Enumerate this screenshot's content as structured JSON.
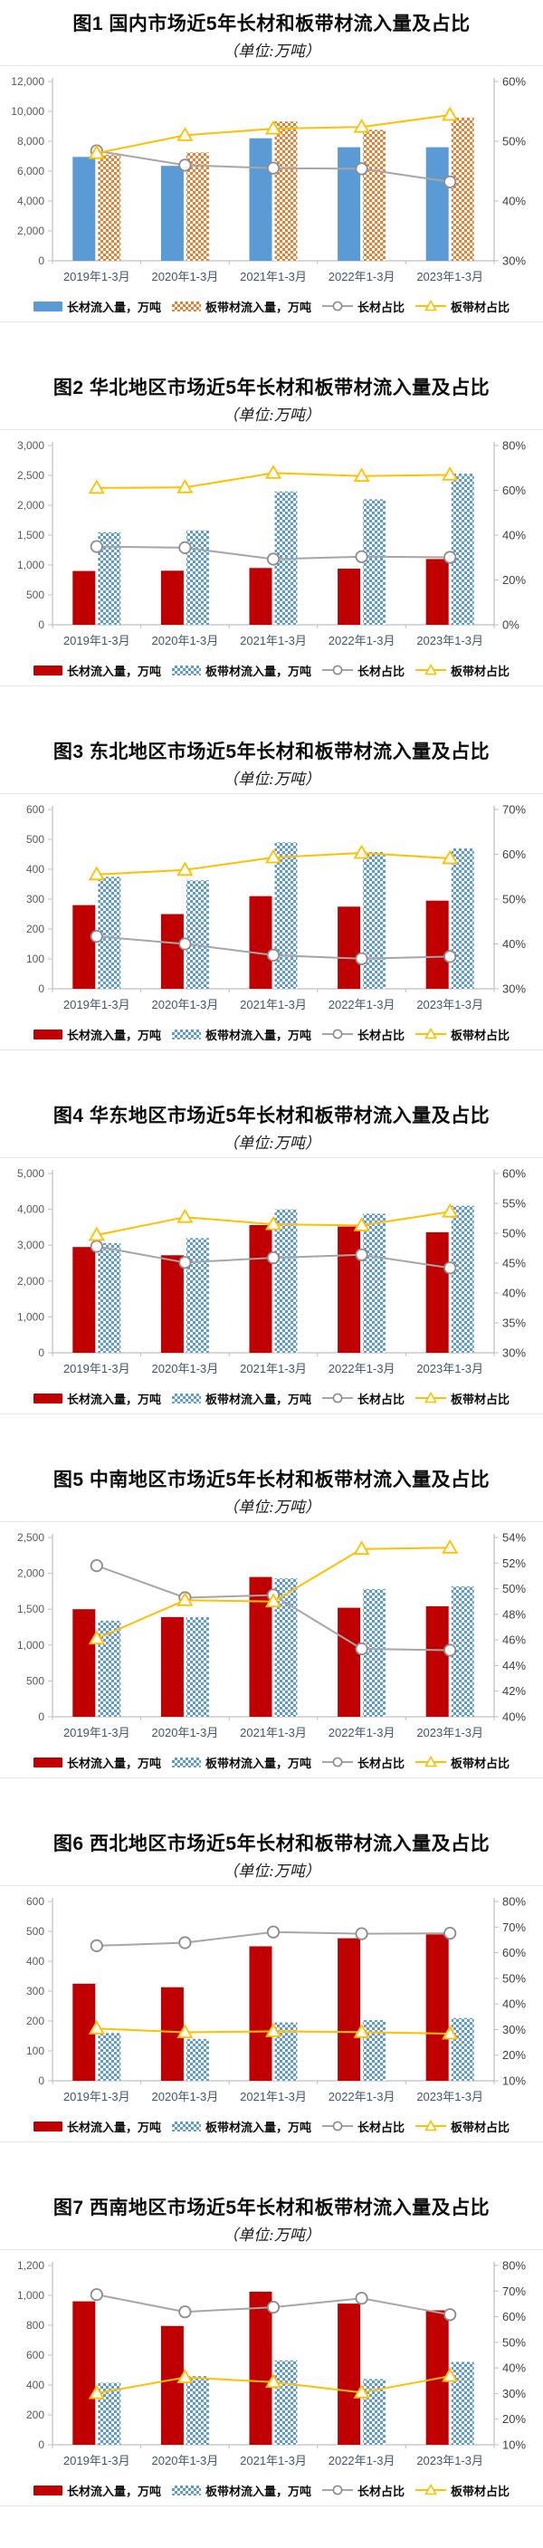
{
  "page": {
    "background": "#ffffff"
  },
  "colors": {
    "blue_bar": "#5B9BD5",
    "orange_bar": "#ED7D31",
    "red_bar": "#C00000",
    "gray_line": "#A6A6A6",
    "yellow_line": "#FFC000",
    "axis_line": "#BFBFBF",
    "left_axis_text": "#595959",
    "right_axis_text": "#3F3F3F",
    "x_label_text": "#44546A",
    "legend_text": "#0D0D0D"
  },
  "legend_labels": {
    "bar1": "长材流入量，万吨",
    "bar2": "板带材流入量，万吨",
    "line1": "长材占比",
    "line2": "板带材占比"
  },
  "figures": [
    {
      "title": "图1 国内市场近5年长材和板带材流入量及占比",
      "subtitle": "（单位:万吨）",
      "chart_data": {
        "type": "bar+line",
        "categories": [
          "2019年1-3月",
          "2020年1-3月",
          "2021年1-3月",
          "2022年1-3月",
          "2023年1-3月"
        ],
        "left_axis": {
          "min": 0,
          "max": 12000,
          "step": 2000
        },
        "right_axis": {
          "min": 30,
          "max": 60,
          "step": 10,
          "suffix": "%"
        },
        "grid": false,
        "legend_position": "bottom",
        "series": [
          {
            "name": "长材流入量，万吨",
            "type": "bar",
            "style": "solid",
            "color": "#5B9BD5",
            "axis": "left",
            "values": [
              6950,
              6350,
              8200,
              7600,
              7600
            ]
          },
          {
            "name": "板带材流入量，万吨",
            "type": "bar",
            "style": "checker",
            "color": "#ED7D31",
            "axis": "left",
            "values": [
              7100,
              7250,
              9330,
              8770,
              9590
            ]
          },
          {
            "name": "长材占比",
            "type": "line",
            "marker": "circle",
            "color": "#A6A6A6",
            "axis": "right",
            "values": [
              48.4,
              46.0,
              45.5,
              45.4,
              43.2
            ]
          },
          {
            "name": "板带材占比",
            "type": "line",
            "marker": "triangle",
            "color": "#FFC000",
            "axis": "right",
            "values": [
              48.0,
              51.0,
              52.1,
              52.4,
              54.4
            ]
          }
        ]
      }
    },
    {
      "title": "图2 华北地区市场近5年长材和板带材流入量及占比",
      "subtitle": "（单位:万吨）",
      "chart_data": {
        "type": "bar+line",
        "categories": [
          "2019年1-3月",
          "2020年1-3月",
          "2021年1-3月",
          "2022年1-3月",
          "2023年1-3月"
        ],
        "left_axis": {
          "min": 0,
          "max": 3000,
          "step": 500
        },
        "right_axis": {
          "min": 0,
          "max": 80,
          "step": 20,
          "suffix": "%"
        },
        "grid": false,
        "legend_position": "bottom",
        "series": [
          {
            "name": "长材流入量，万吨",
            "type": "bar",
            "style": "solid",
            "color": "#C00000",
            "axis": "left",
            "values": [
              900,
              905,
              950,
              940,
              1100
            ]
          },
          {
            "name": "板带材流入量，万吨",
            "type": "bar",
            "style": "checker",
            "color": "#5B9BD5",
            "axis": "left",
            "values": [
              1550,
              1580,
              2230,
              2100,
              2530
            ]
          },
          {
            "name": "长材占比",
            "type": "line",
            "marker": "circle",
            "color": "#A6A6A6",
            "axis": "right",
            "values": [
              34.9,
              34.4,
              29.3,
              30.4,
              30.1
            ]
          },
          {
            "name": "板带材占比",
            "type": "line",
            "marker": "triangle",
            "color": "#FFC000",
            "axis": "right",
            "values": [
              61.1,
              61.3,
              67.7,
              66.4,
              66.9
            ]
          }
        ]
      }
    },
    {
      "title": "图3 东北地区市场近5年长材和板带材流入量及占比",
      "subtitle": "（单位:万吨）",
      "chart_data": {
        "type": "bar+line",
        "categories": [
          "2019年1-3月",
          "2020年1-3月",
          "2021年1-3月",
          "2022年1-3月",
          "2023年1-3月"
        ],
        "left_axis": {
          "min": 0,
          "max": 600,
          "step": 100
        },
        "right_axis": {
          "min": 30,
          "max": 70,
          "step": 10,
          "suffix": "%"
        },
        "grid": false,
        "legend_position": "bottom",
        "series": [
          {
            "name": "长材流入量，万吨",
            "type": "bar",
            "style": "solid",
            "color": "#C00000",
            "axis": "left",
            "values": [
              280,
              250,
              310,
              275,
              295
            ]
          },
          {
            "name": "板带材流入量，万吨",
            "type": "bar",
            "style": "checker",
            "color": "#5B9BD5",
            "axis": "left",
            "values": [
              375,
              363,
              490,
              458,
              470
            ]
          },
          {
            "name": "长材占比",
            "type": "line",
            "marker": "circle",
            "color": "#A6A6A6",
            "axis": "right",
            "values": [
              41.7,
              40.0,
              37.5,
              36.7,
              37.2
            ]
          },
          {
            "name": "板带材占比",
            "type": "line",
            "marker": "triangle",
            "color": "#FFC000",
            "axis": "right",
            "values": [
              55.5,
              56.5,
              59.3,
              60.3,
              59.1
            ]
          }
        ]
      }
    },
    {
      "title": "图4 华东地区市场近5年长材和板带材流入量及占比",
      "subtitle": "（单位:万吨）",
      "chart_data": {
        "type": "bar+line",
        "categories": [
          "2019年1-3月",
          "2020年1-3月",
          "2021年1-3月",
          "2022年1-3月",
          "2023年1-3月"
        ],
        "left_axis": {
          "min": 0,
          "max": 5000,
          "step": 1000
        },
        "right_axis": {
          "min": 30,
          "max": 60,
          "step": 5,
          "suffix": "%"
        },
        "grid": false,
        "legend_position": "bottom",
        "series": [
          {
            "name": "长材流入量，万吨",
            "type": "bar",
            "style": "solid",
            "color": "#C00000",
            "axis": "left",
            "values": [
              2950,
              2720,
              3560,
              3520,
              3360
            ]
          },
          {
            "name": "板带材流入量，万吨",
            "type": "bar",
            "style": "checker",
            "color": "#5B9BD5",
            "axis": "left",
            "values": [
              3060,
              3200,
              4000,
              3880,
              4100
            ]
          },
          {
            "name": "长材占比",
            "type": "line",
            "marker": "circle",
            "color": "#A6A6A6",
            "axis": "right",
            "values": [
              47.8,
              45.1,
              45.9,
              46.4,
              44.2
            ]
          },
          {
            "name": "板带材占比",
            "type": "line",
            "marker": "triangle",
            "color": "#FFC000",
            "axis": "right",
            "values": [
              49.7,
              52.7,
              51.5,
              51.3,
              53.6
            ]
          }
        ]
      }
    },
    {
      "title": "图5 中南地区市场近5年长材和板带材流入量及占比",
      "subtitle": "（单位:万吨）",
      "chart_data": {
        "type": "bar+line",
        "categories": [
          "2019年1-3月",
          "2020年1-3月",
          "2021年1-3月",
          "2022年1-3月",
          "2023年1-3月"
        ],
        "left_axis": {
          "min": 0,
          "max": 2500,
          "step": 500
        },
        "right_axis": {
          "min": 40,
          "max": 54,
          "step": 2,
          "suffix": "%"
        },
        "grid": false,
        "legend_position": "bottom",
        "series": [
          {
            "name": "长材流入量，万吨",
            "type": "bar",
            "style": "solid",
            "color": "#C00000",
            "axis": "left",
            "values": [
              1500,
              1390,
              1950,
              1520,
              1540
            ]
          },
          {
            "name": "板带材流入量，万吨",
            "type": "bar",
            "style": "checker",
            "color": "#5B9BD5",
            "axis": "left",
            "values": [
              1340,
              1390,
              1930,
              1780,
              1820
            ]
          },
          {
            "name": "长材占比",
            "type": "line",
            "marker": "circle",
            "color": "#A6A6A6",
            "axis": "right",
            "values": [
              51.8,
              49.3,
              49.5,
              45.3,
              45.2
            ]
          },
          {
            "name": "板带材占比",
            "type": "line",
            "marker": "triangle",
            "color": "#FFC000",
            "axis": "right",
            "values": [
              46.1,
              49.1,
              49.0,
              53.1,
              53.2
            ]
          }
        ]
      }
    },
    {
      "title": "图6 西北地区市场近5年长材和板带材流入量及占比",
      "subtitle": "（单位:万吨）",
      "chart_data": {
        "type": "bar+line",
        "categories": [
          "2019年1-3月",
          "2020年1-3月",
          "2021年1-3月",
          "2022年1-3月",
          "2023年1-3月"
        ],
        "left_axis": {
          "min": 0,
          "max": 600,
          "step": 100
        },
        "right_axis": {
          "min": 10,
          "max": 80,
          "step": 10,
          "suffix": "%"
        },
        "grid": false,
        "legend_position": "bottom",
        "series": [
          {
            "name": "长材流入量，万吨",
            "type": "bar",
            "style": "solid",
            "color": "#C00000",
            "axis": "left",
            "values": [
              325,
              313,
              450,
              477,
              490
            ]
          },
          {
            "name": "板带材流入量，万吨",
            "type": "bar",
            "style": "checker",
            "color": "#5B9BD5",
            "axis": "left",
            "values": [
              160,
              140,
              195,
              203,
              210
            ]
          },
          {
            "name": "长材占比",
            "type": "line",
            "marker": "circle",
            "color": "#A6A6A6",
            "axis": "right",
            "values": [
              62.7,
              63.9,
              68.1,
              67.4,
              67.6
            ]
          },
          {
            "name": "板带材占比",
            "type": "line",
            "marker": "triangle",
            "color": "#FFC000",
            "axis": "right",
            "values": [
              30.4,
              28.9,
              29.3,
              29.0,
              28.4
            ]
          }
        ]
      }
    },
    {
      "title": "图7 西南地区市场近5年长材和板带材流入量及占比",
      "subtitle": "（单位:万吨）",
      "chart_data": {
        "type": "bar+line",
        "categories": [
          "2019年1-3月",
          "2020年1-3月",
          "2021年1-3月",
          "2022年1-3月",
          "2023年1-3月"
        ],
        "left_axis": {
          "min": 0,
          "max": 1200,
          "step": 200
        },
        "right_axis": {
          "min": 10,
          "max": 80,
          "step": 10,
          "suffix": "%"
        },
        "grid": false,
        "legend_position": "bottom",
        "series": [
          {
            "name": "长材流入量，万吨",
            "type": "bar",
            "style": "solid",
            "color": "#C00000",
            "axis": "left",
            "values": [
              960,
              795,
              1025,
              945,
              900
            ]
          },
          {
            "name": "板带材流入量，万吨",
            "type": "bar",
            "style": "checker",
            "color": "#5B9BD5",
            "axis": "left",
            "values": [
              415,
              460,
              565,
              440,
              555
            ]
          },
          {
            "name": "长材占比",
            "type": "line",
            "marker": "circle",
            "color": "#A6A6A6",
            "axis": "right",
            "values": [
              68.6,
              61.9,
              63.7,
              67.2,
              60.8
            ]
          },
          {
            "name": "板带材占比",
            "type": "line",
            "marker": "triangle",
            "color": "#FFC000",
            "axis": "right",
            "values": [
              30.1,
              36.3,
              34.5,
              30.4,
              36.8
            ]
          }
        ]
      }
    }
  ]
}
